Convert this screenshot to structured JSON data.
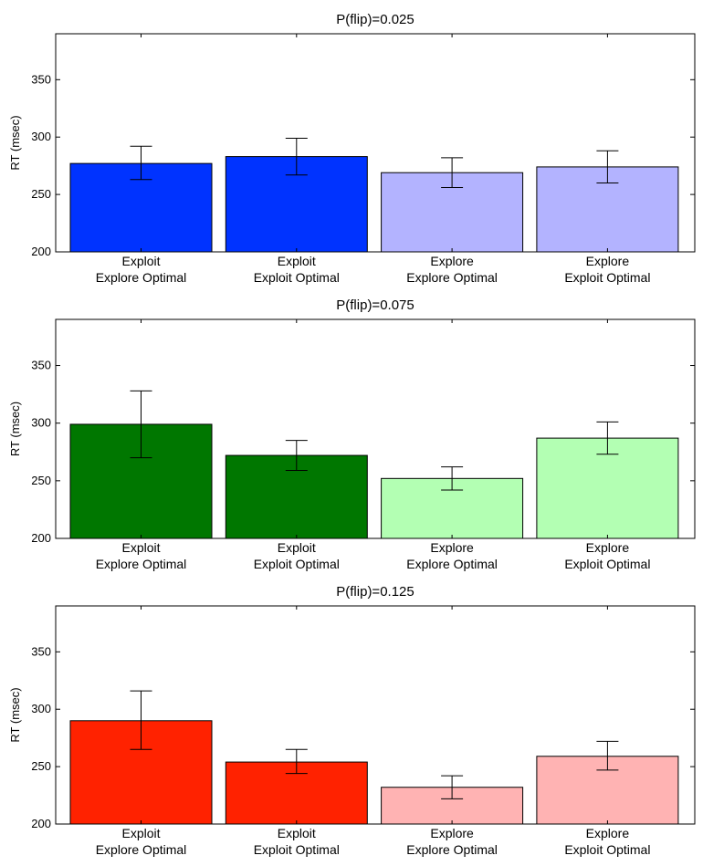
{
  "chart_data": [
    {
      "type": "bar",
      "title": "P(flip)=0.025",
      "ylabel": "RT (msec)",
      "xlabel": "",
      "ylim": [
        200,
        390
      ],
      "yticks": [
        200,
        250,
        300,
        350
      ],
      "ytick_labels": [
        "200",
        "250",
        "300",
        "350"
      ],
      "categories": [
        [
          "Exploit",
          "Explore Optimal"
        ],
        [
          "Exploit",
          "Exploit Optimal"
        ],
        [
          "Explore",
          "Explore Optimal"
        ],
        [
          "Explore",
          "Exploit Optimal"
        ]
      ],
      "values": [
        277,
        283,
        269,
        274
      ],
      "errors": [
        [
          263,
          292
        ],
        [
          267,
          299
        ],
        [
          256,
          282
        ],
        [
          260,
          288
        ]
      ],
      "colors": [
        "#0033ff",
        "#0033ff",
        "#b3b3ff",
        "#b3b3ff"
      ]
    },
    {
      "type": "bar",
      "title": "P(flip)=0.075",
      "ylabel": "RT (msec)",
      "xlabel": "",
      "ylim": [
        200,
        390
      ],
      "yticks": [
        200,
        250,
        300,
        350
      ],
      "ytick_labels": [
        "200",
        "250",
        "300",
        "350"
      ],
      "categories": [
        [
          "Exploit",
          "Explore Optimal"
        ],
        [
          "Exploit",
          "Exploit Optimal"
        ],
        [
          "Explore",
          "Explore Optimal"
        ],
        [
          "Explore",
          "Exploit Optimal"
        ]
      ],
      "values": [
        299,
        272,
        252,
        287
      ],
      "errors": [
        [
          270,
          328
        ],
        [
          259,
          285
        ],
        [
          242,
          262
        ],
        [
          273,
          301
        ]
      ],
      "colors": [
        "#007700",
        "#007700",
        "#b3ffb3",
        "#b3ffb3"
      ]
    },
    {
      "type": "bar",
      "title": "P(flip)=0.125",
      "ylabel": "RT (msec)",
      "xlabel": "",
      "ylim": [
        200,
        390
      ],
      "yticks": [
        200,
        250,
        300,
        350
      ],
      "ytick_labels": [
        "200",
        "250",
        "300",
        "350"
      ],
      "categories": [
        [
          "Exploit",
          "Explore Optimal"
        ],
        [
          "Exploit",
          "Exploit Optimal"
        ],
        [
          "Explore",
          "Explore Optimal"
        ],
        [
          "Explore",
          "Exploit Optimal"
        ]
      ],
      "values": [
        290,
        254,
        232,
        259
      ],
      "errors": [
        [
          265,
          316
        ],
        [
          244,
          265
        ],
        [
          222,
          242
        ],
        [
          247,
          272
        ]
      ],
      "colors": [
        "#ff2200",
        "#ff2200",
        "#ffb3b3",
        "#ffb3b3"
      ]
    }
  ]
}
